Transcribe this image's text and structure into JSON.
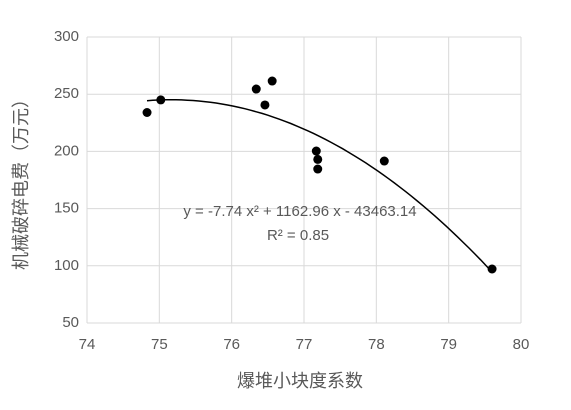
{
  "chart_data": {
    "type": "scatter",
    "x_label": "爆堆小块度系数",
    "y_label": "机械破碎电费（万元）",
    "series": [
      {
        "color": "#000000",
        "x": [
          74.83,
          75.02,
          76.34,
          76.56,
          76.46,
          77.17,
          77.19,
          77.19,
          78.11,
          79.6
        ],
        "values": [
          234,
          245,
          254.5,
          261.5,
          240.6,
          200.3,
          193,
          184.6,
          191.6,
          97.2
        ]
      }
    ],
    "trendline": "poly2",
    "annotations": [
      "y = -7.74 x² + 1162.96 x - 43463.14",
      "R² = 0.85"
    ],
    "xlim": [
      74,
      80
    ],
    "xticks": [
      74,
      75,
      76,
      77,
      78,
      79,
      80
    ],
    "ylim": [
      50,
      300
    ],
    "yticks": [
      50,
      100,
      150,
      200,
      250,
      300
    ],
    "grid": true
  }
}
